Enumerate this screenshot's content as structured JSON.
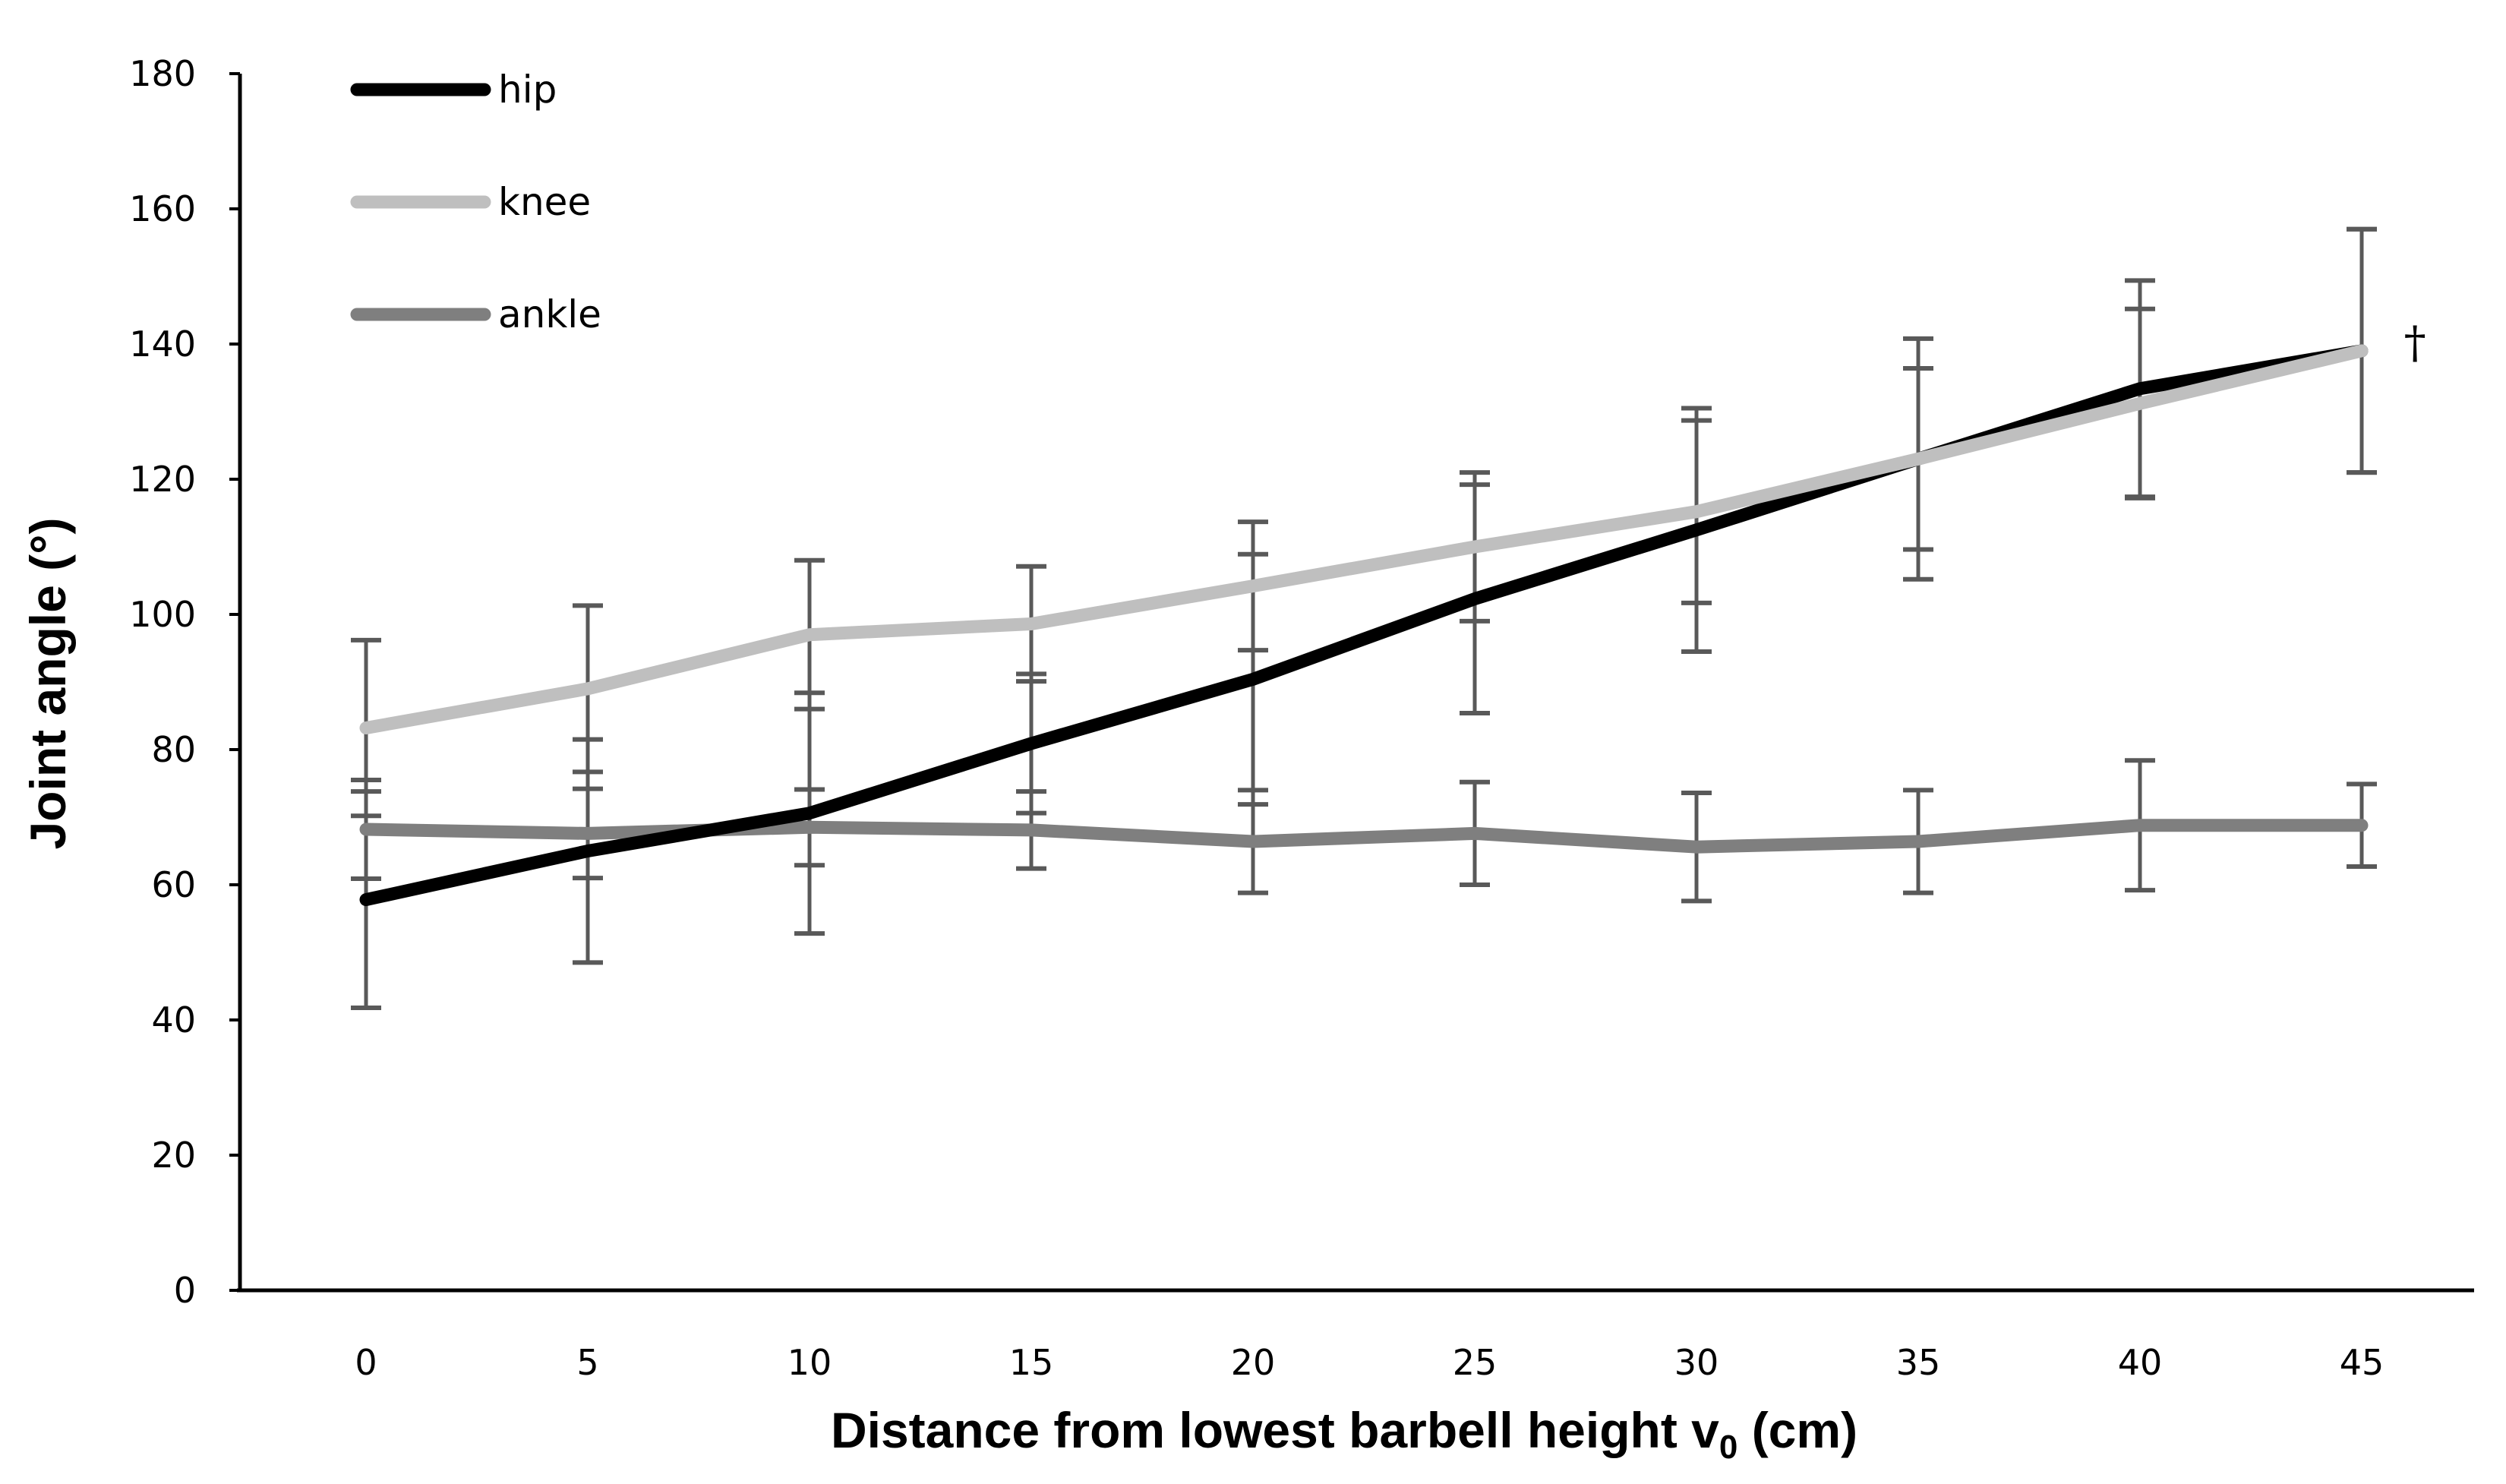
{
  "chart_data": {
    "type": "line",
    "title": "",
    "xlabel_main": "Distance from lowest barbell height v",
    "xlabel_subscript": "0",
    "xlabel_tail": " (cm)",
    "ylabel": "Joint angle (°)",
    "x": [
      0,
      5,
      10,
      15,
      20,
      25,
      30,
      35,
      40,
      45
    ],
    "x_tick_labels": [
      "0",
      "5",
      "10",
      "15",
      "20",
      "25",
      "30",
      "35",
      "40",
      "45"
    ],
    "ylim": [
      0,
      180
    ],
    "y_ticks": [
      0,
      20,
      40,
      60,
      80,
      100,
      120,
      140,
      160,
      180
    ],
    "y_tick_labels": [
      "0",
      "20",
      "40",
      "60",
      "80",
      "100",
      "120",
      "140",
      "160",
      "180"
    ],
    "grid": false,
    "legend_position": "top-left",
    "series": [
      {
        "name": "hip",
        "color": "#000000",
        "values": [
          57.8,
          65.0,
          70.6,
          80.9,
          90.4,
          102.3,
          112.5,
          123.0,
          133.4,
          139.0
        ],
        "errors": [
          16.0,
          16.5,
          17.8,
          10.3,
          18.5,
          16.9,
          18.0,
          13.4,
          16.0,
          18.0
        ]
      },
      {
        "name": "knee",
        "color": "#bfbfbf",
        "values": [
          83.2,
          89.0,
          97.0,
          98.6,
          104.2,
          110.0,
          115.2,
          123.0,
          131.2,
          139.0
        ],
        "errors": [
          13.0,
          12.3,
          11.0,
          8.5,
          9.5,
          11.0,
          13.5,
          17.8,
          14.0,
          18.0
        ]
      },
      {
        "name": "ankle",
        "color": "#7f7f7f",
        "values": [
          68.2,
          67.6,
          68.5,
          68.1,
          66.4,
          67.6,
          65.6,
          66.4,
          68.8,
          68.8
        ],
        "errors": [
          7.3,
          6.6,
          5.6,
          5.7,
          7.6,
          7.6,
          8.0,
          7.6,
          9.6,
          6.1
        ]
      }
    ],
    "annotations": [
      {
        "text": "†",
        "x": 46.2,
        "y": 140
      }
    ],
    "error_bar_color": "#595959"
  }
}
